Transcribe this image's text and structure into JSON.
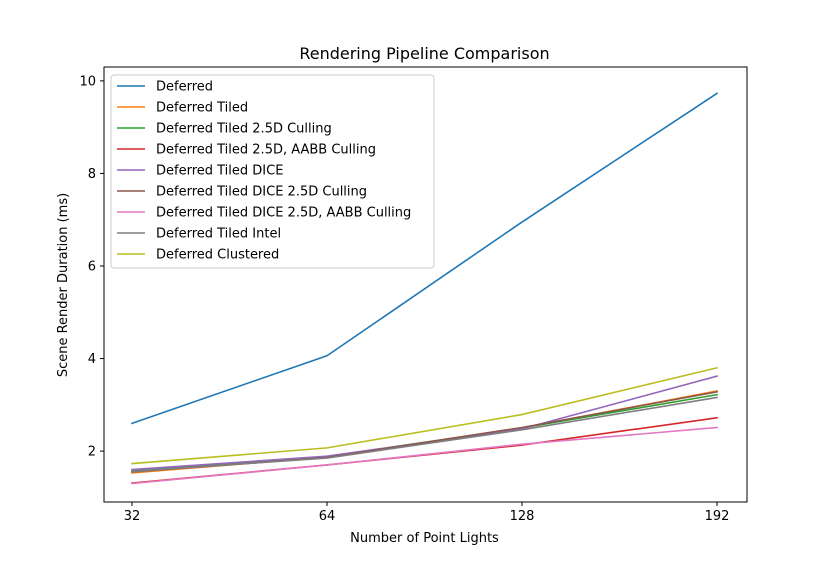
{
  "chart_data": {
    "type": "line",
    "title": "Rendering Pipeline Comparison",
    "xlabel": "Number of Point Lights",
    "ylabel": "Scene Render Duration (ms)",
    "x": [
      32,
      64,
      128,
      192
    ],
    "x_tick_labels": [
      "32",
      "64",
      "128",
      "192"
    ],
    "y_ticks": [
      2,
      4,
      6,
      8,
      10
    ],
    "y_tick_labels": [
      "2",
      "4",
      "6",
      "8",
      "10"
    ],
    "ylim": [
      0.9,
      10.3
    ],
    "grid": false,
    "legend_position": "upper-left",
    "series": [
      {
        "name": "Deferred",
        "color": "#1f77b4",
        "values": [
          2.6,
          4.06,
          6.95,
          9.73
        ]
      },
      {
        "name": "Deferred Tiled",
        "color": "#ff7f0e",
        "values": [
          1.53,
          1.87,
          2.5,
          3.3
        ]
      },
      {
        "name": "Deferred Tiled 2.5D Culling",
        "color": "#2ca02c",
        "values": [
          1.57,
          1.88,
          2.5,
          3.22
        ]
      },
      {
        "name": "Deferred Tiled 2.5D, AABB Culling",
        "color": "#d62728",
        "values": [
          1.31,
          1.7,
          2.13,
          2.72
        ]
      },
      {
        "name": "Deferred Tiled DICE",
        "color": "#9467bd",
        "values": [
          1.6,
          1.89,
          2.48,
          3.62
        ]
      },
      {
        "name": "Deferred Tiled DICE 2.5D Culling",
        "color": "#8c564b",
        "values": [
          1.55,
          1.86,
          2.51,
          3.28
        ]
      },
      {
        "name": "Deferred Tiled DICE 2.5D, AABB Culling",
        "color": "#e377c2",
        "values": [
          1.3,
          1.7,
          2.15,
          2.51
        ]
      },
      {
        "name": "Deferred Tiled Intel",
        "color": "#7f7f7f",
        "values": [
          1.56,
          1.85,
          2.46,
          3.16
        ]
      },
      {
        "name": "Deferred Clustered",
        "color": "#bcbd22",
        "values": [
          1.73,
          2.07,
          2.79,
          3.8
        ]
      }
    ]
  }
}
